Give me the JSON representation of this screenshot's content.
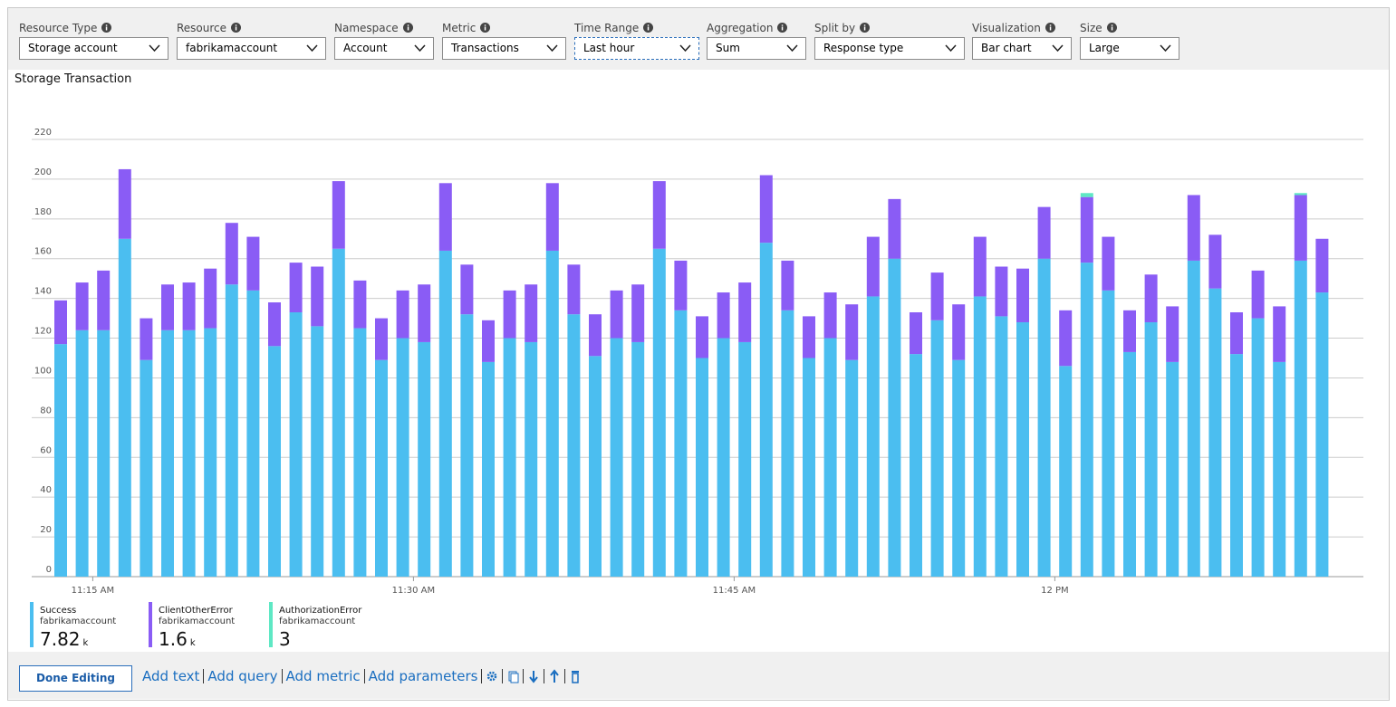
{
  "toolbar": {
    "fields": [
      {
        "label": "Resource Type",
        "value": "Storage account"
      },
      {
        "label": "Resource",
        "value": "fabrikamaccount"
      },
      {
        "label": "Namespace",
        "value": "Account"
      },
      {
        "label": "Metric",
        "value": "Transactions"
      },
      {
        "label": "Time Range",
        "value": "Last hour"
      },
      {
        "label": "Aggregation",
        "value": "Sum"
      },
      {
        "label": "Split by",
        "value": "Response type"
      },
      {
        "label": "Visualization",
        "value": "Bar chart"
      },
      {
        "label": "Size",
        "value": "Large"
      }
    ]
  },
  "chart_data": {
    "type": "stacked-bar",
    "title": "Storage Transaction",
    "categories": [
      null,
      null,
      null,
      null,
      null,
      null,
      null,
      null,
      null,
      null,
      null,
      null,
      null,
      null,
      null,
      null,
      null,
      null,
      null,
      null,
      null,
      null,
      null,
      null,
      null,
      null,
      null,
      null,
      null,
      null,
      null,
      null,
      null,
      null,
      null,
      null,
      null,
      null,
      null,
      null,
      null,
      null,
      null,
      null,
      null,
      null,
      null,
      null,
      null,
      null,
      null,
      null,
      null,
      null,
      null,
      null,
      null,
      null,
      null,
      null
    ],
    "xlim": [
      -0.5,
      59.5
    ],
    "xticks": [
      {
        "value": 1.5,
        "label": "11:15 AM"
      },
      {
        "value": 16.5,
        "label": "11:30 AM"
      },
      {
        "value": 31.5,
        "label": "11:45 AM"
      },
      {
        "value": 46.5,
        "label": "12 PM"
      }
    ],
    "ylim": [
      0,
      220
    ],
    "yticks": [
      0,
      20,
      40,
      60,
      80,
      100,
      120,
      140,
      160,
      180,
      200,
      220
    ],
    "grid": true,
    "series": [
      {
        "name": "Success",
        "resource": "fabrikamaccount",
        "total": 7.82,
        "total_unit": "k",
        "color": "#4bbef0",
        "values": [
          117,
          124,
          124,
          170,
          109,
          124,
          124,
          125,
          147,
          144,
          116,
          133,
          126,
          165,
          125,
          109,
          120,
          118,
          164,
          132,
          108,
          120,
          118,
          164,
          132,
          111,
          120,
          118,
          165,
          134,
          110,
          120,
          118,
          168,
          134,
          110,
          120,
          109,
          141,
          160,
          112,
          129,
          109,
          141,
          131,
          128,
          160,
          106,
          158,
          144,
          113,
          128,
          108,
          159,
          145,
          112,
          130,
          108,
          159,
          143
        ]
      },
      {
        "name": "ClientOtherError",
        "resource": "fabrikamaccount",
        "total": 1.6,
        "total_unit": "k",
        "color": "#8a5cf5",
        "values": [
          22,
          24,
          30,
          35,
          21,
          23,
          24,
          30,
          31,
          27,
          22,
          25,
          30,
          34,
          24,
          21,
          24,
          29,
          34,
          25,
          21,
          24,
          29,
          34,
          25,
          21,
          24,
          29,
          34,
          25,
          21,
          23,
          30,
          34,
          25,
          21,
          23,
          28,
          30,
          30,
          21,
          24,
          28,
          30,
          25,
          27,
          26,
          28,
          33,
          27,
          21,
          24,
          28,
          33,
          27,
          21,
          24,
          28,
          33,
          27
        ]
      },
      {
        "name": "AuthorizationError",
        "resource": "fabrikamaccount",
        "total": 3,
        "color": "#5ee8c4",
        "values": [
          0,
          0,
          0,
          0,
          0,
          0,
          0,
          0,
          0,
          0,
          0,
          0,
          0,
          0,
          0,
          0,
          0,
          0,
          0,
          0,
          0,
          0,
          0,
          0,
          0,
          0,
          0,
          0,
          0,
          0,
          0,
          0,
          0,
          0,
          0,
          0,
          0,
          0,
          0,
          0,
          0,
          0,
          0,
          0,
          0,
          0,
          0,
          0,
          2,
          0,
          0,
          0,
          0,
          0,
          0,
          0,
          0,
          0,
          1,
          0
        ]
      }
    ]
  },
  "footer": {
    "button": "Done Editing",
    "links": [
      "Add text",
      "Add query",
      "Add metric",
      "Add parameters"
    ]
  }
}
